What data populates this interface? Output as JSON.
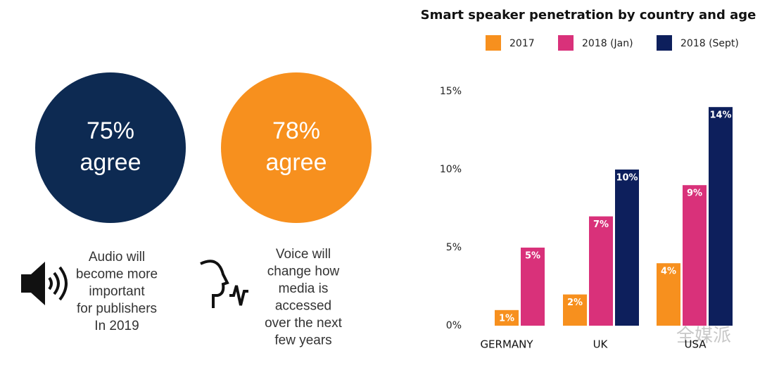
{
  "stats": [
    {
      "figure": "75%",
      "word": "agree",
      "caption": [
        "Audio will",
        "become more",
        "important",
        "for publishers",
        "In 2019"
      ]
    },
    {
      "figure": "78%",
      "word": "agree",
      "caption": [
        "Voice will",
        "change how",
        "media is",
        "accessed",
        "over the next",
        "few years"
      ]
    }
  ],
  "watermark": "全媒派",
  "chart_data": {
    "type": "bar",
    "title": "Smart speaker penetration by country and age",
    "categories": [
      "GERMANY",
      "UK",
      "USA"
    ],
    "series": [
      {
        "name": "2017",
        "color": "#f7901e",
        "values": [
          1,
          2,
          4
        ],
        "value_labels": [
          "1%",
          "2%",
          "4%"
        ]
      },
      {
        "name": "2018 (Jan)",
        "color": "#d9317a",
        "values": [
          5,
          7,
          9
        ],
        "value_labels": [
          "5%",
          "7%",
          "9%"
        ]
      },
      {
        "name": "2018 (Sept)",
        "color": "#0d1f5c",
        "values": [
          null,
          10,
          14
        ],
        "value_labels": [
          null,
          "10%",
          "14%"
        ]
      }
    ],
    "ylim": [
      0,
      15
    ],
    "yticks": [
      {
        "value": 0,
        "label": "0%"
      },
      {
        "value": 5,
        "label": "5%"
      },
      {
        "value": 10,
        "label": "10%"
      },
      {
        "value": 15,
        "label": "15%"
      }
    ],
    "grid": false,
    "legend": "top"
  }
}
